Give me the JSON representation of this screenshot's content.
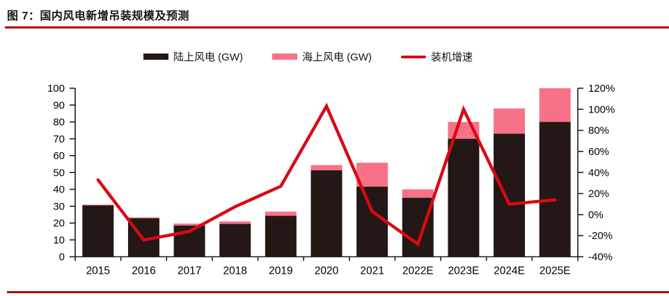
{
  "page": {
    "title": "图 7：国内风电新增吊装规模及预测",
    "accent_rule_color": "#B20000"
  },
  "chart_data": {
    "type": "combo-stacked-bar-line",
    "title": "图 7：国内风电新增吊装规模及预测",
    "categories": [
      "2015",
      "2016",
      "2017",
      "2018",
      "2019",
      "2020",
      "2021",
      "2022E",
      "2023E",
      "2024E",
      "2025E"
    ],
    "series": [
      {
        "name": "陆上风电 (GW)",
        "type": "bar",
        "stack": "wind",
        "axis": "left",
        "color": "#231815",
        "values": [
          30.5,
          22.8,
          18.5,
          19.5,
          24.3,
          51.3,
          41.6,
          35,
          70,
          73,
          80
        ]
      },
      {
        "name": "海上风电 (GW)",
        "type": "bar",
        "stack": "wind",
        "axis": "left",
        "color": "#F87287",
        "values": [
          0.4,
          0.6,
          1.2,
          1.5,
          2.5,
          3.1,
          14.2,
          5,
          10,
          15,
          20
        ]
      },
      {
        "name": "装机增速",
        "type": "line",
        "axis": "right",
        "unit": "%",
        "color": "#D90915",
        "values": [
          33,
          -24,
          -16,
          7.5,
          27,
          103,
          3,
          -28,
          100,
          10,
          14
        ]
      }
    ],
    "left_axis": {
      "min": 0,
      "max": 100,
      "ticks": [
        "100",
        "90",
        "80",
        "70",
        "60",
        "50",
        "40",
        "30",
        "20",
        "10",
        "0"
      ]
    },
    "right_axis": {
      "min": -40,
      "max": 120,
      "ticks": [
        "120%",
        "100%",
        "80%",
        "60%",
        "40%",
        "20%",
        "0%",
        "-20%",
        "-40%"
      ]
    },
    "grid": false,
    "legend_position": "top",
    "plot_background": "#ffffff"
  }
}
